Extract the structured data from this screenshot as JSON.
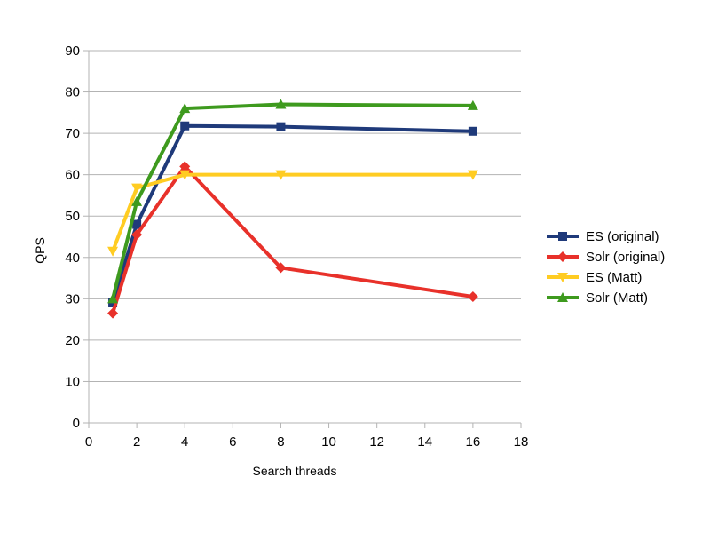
{
  "chart_data": {
    "type": "line",
    "title": "",
    "xlabel": "Search threads",
    "ylabel": "QPS",
    "xlim": [
      0,
      18
    ],
    "ylim": [
      0,
      90
    ],
    "xticks": [
      0,
      2,
      4,
      6,
      8,
      10,
      12,
      14,
      16,
      18
    ],
    "yticks": [
      0,
      10,
      20,
      30,
      40,
      50,
      60,
      70,
      80,
      90
    ],
    "grid": "horizontal",
    "legend_position": "right",
    "series": [
      {
        "name": "ES (original)",
        "color": "#1f3a7a",
        "marker": "square",
        "points": [
          [
            1,
            29
          ],
          [
            2,
            48
          ],
          [
            4,
            71.8
          ],
          [
            8,
            71.6
          ],
          [
            16,
            70.5
          ]
        ]
      },
      {
        "name": "Solr (original)",
        "color": "#e8312a",
        "marker": "diamond",
        "points": [
          [
            1,
            26.5
          ],
          [
            2,
            45.5
          ],
          [
            4,
            62
          ],
          [
            8,
            37.5
          ],
          [
            16,
            30.5
          ]
        ]
      },
      {
        "name": "ES (Matt)",
        "color": "#ffcc22",
        "marker": "triangle-down",
        "points": [
          [
            1,
            41.5
          ],
          [
            2,
            56.8
          ],
          [
            4,
            60
          ],
          [
            8,
            60
          ],
          [
            16,
            60
          ]
        ]
      },
      {
        "name": "Solr (Matt)",
        "color": "#3e9a1e",
        "marker": "triangle-up",
        "points": [
          [
            1,
            30
          ],
          [
            2,
            53.5
          ],
          [
            4,
            76
          ],
          [
            8,
            77
          ],
          [
            16,
            76.7
          ]
        ]
      }
    ]
  }
}
